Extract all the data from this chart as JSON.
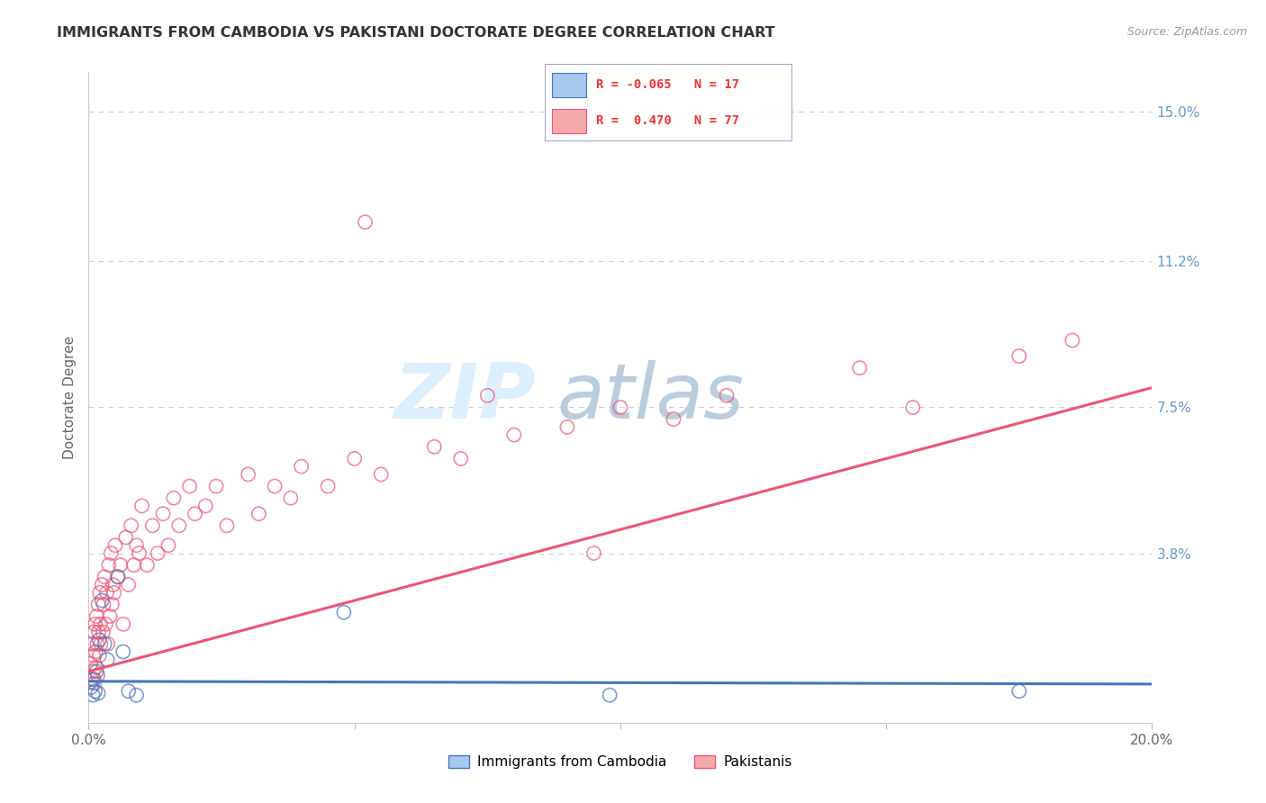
{
  "title": "IMMIGRANTS FROM CAMBODIA VS PAKISTANI DOCTORATE DEGREE CORRELATION CHART",
  "source": "Source: ZipAtlas.com",
  "ylabel": "Doctorate Degree",
  "xlim": [
    0.0,
    20.0
  ],
  "ylim": [
    -0.5,
    16.0
  ],
  "y_tick_vals_right": [
    3.8,
    7.5,
    11.2,
    15.0
  ],
  "y_tick_labels_right": [
    "3.8%",
    "7.5%",
    "11.2%",
    "15.0%"
  ],
  "cambodia_color": "#A8C8F0",
  "pakistani_color": "#F4AAAA",
  "trend_cambodia_color": "#4477BB",
  "trend_pakistani_color": "#EE5577",
  "grid_color": "#CCCCCC",
  "background_color": "#FFFFFF",
  "watermark_zip_color": "#DDEEFF",
  "watermark_atlas_color": "#BBCCDD",
  "legend_text_color": "#EE3333",
  "legend_box_color": "#E8E8F0",
  "right_axis_color": "#6699CC",
  "title_color": "#333333",
  "source_color": "#999999",
  "cam_R": -0.065,
  "cam_N": 17,
  "pak_R": 0.47,
  "pak_N": 77,
  "cam_trend_start_y": 0.55,
  "cam_trend_end_y": 0.48,
  "pak_trend_start_y": 0.8,
  "pak_trend_end_y": 8.0,
  "cambodia_x": [
    0.05,
    0.08,
    0.1,
    0.12,
    0.15,
    0.18,
    0.2,
    0.25,
    0.3,
    0.35,
    0.55,
    0.65,
    0.75,
    0.9,
    4.8,
    9.8,
    17.5
  ],
  "cambodia_y": [
    0.4,
    0.2,
    0.6,
    0.3,
    0.8,
    0.25,
    1.6,
    2.6,
    1.5,
    1.1,
    3.2,
    1.3,
    0.3,
    0.2,
    2.3,
    0.2,
    0.3
  ],
  "pakistani_x": [
    0.04,
    0.06,
    0.07,
    0.08,
    0.09,
    0.1,
    0.11,
    0.12,
    0.13,
    0.14,
    0.15,
    0.16,
    0.17,
    0.18,
    0.19,
    0.2,
    0.21,
    0.22,
    0.23,
    0.25,
    0.27,
    0.28,
    0.3,
    0.32,
    0.34,
    0.36,
    0.38,
    0.4,
    0.42,
    0.44,
    0.46,
    0.48,
    0.5,
    0.55,
    0.6,
    0.65,
    0.7,
    0.75,
    0.8,
    0.85,
    0.9,
    0.95,
    1.0,
    1.1,
    1.2,
    1.3,
    1.4,
    1.5,
    1.6,
    1.7,
    1.9,
    2.0,
    2.2,
    2.4,
    2.6,
    3.0,
    3.2,
    3.5,
    3.8,
    4.0,
    4.5,
    5.0,
    5.5,
    6.5,
    7.0,
    8.0,
    9.0,
    10.0,
    11.0,
    12.0,
    14.5,
    15.5,
    17.5,
    18.5,
    7.5,
    5.2,
    9.5
  ],
  "pakistani_y": [
    1.0,
    0.6,
    1.5,
    0.8,
    1.2,
    1.8,
    0.5,
    2.0,
    1.3,
    0.9,
    2.2,
    1.5,
    0.7,
    2.5,
    1.8,
    1.2,
    2.8,
    2.0,
    1.5,
    3.0,
    1.8,
    2.5,
    3.2,
    2.0,
    2.8,
    1.5,
    3.5,
    2.2,
    3.8,
    2.5,
    3.0,
    2.8,
    4.0,
    3.2,
    3.5,
    2.0,
    4.2,
    3.0,
    4.5,
    3.5,
    4.0,
    3.8,
    5.0,
    3.5,
    4.5,
    3.8,
    4.8,
    4.0,
    5.2,
    4.5,
    5.5,
    4.8,
    5.0,
    5.5,
    4.5,
    5.8,
    4.8,
    5.5,
    5.2,
    6.0,
    5.5,
    6.2,
    5.8,
    6.5,
    6.2,
    6.8,
    7.0,
    7.5,
    7.2,
    7.8,
    8.5,
    7.5,
    8.8,
    9.2,
    7.8,
    12.2,
    3.8
  ]
}
